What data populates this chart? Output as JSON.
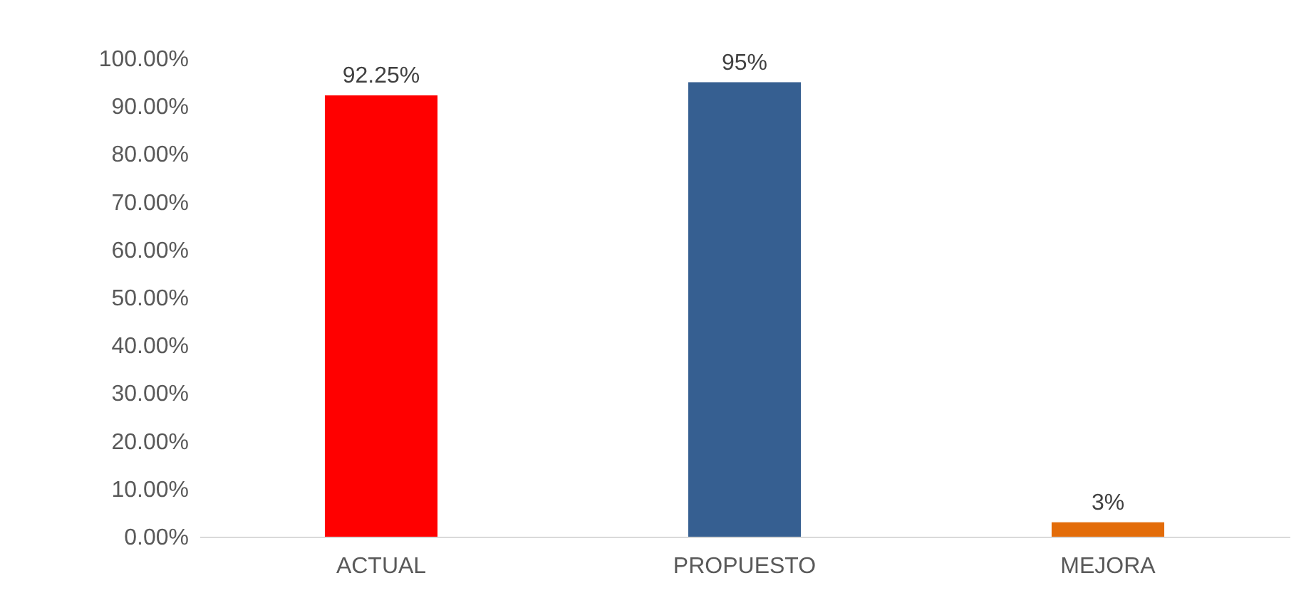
{
  "chart_data": {
    "type": "bar",
    "categories": [
      "ACTUAL",
      "PROPUESTO",
      "MEJORA"
    ],
    "values": [
      92.25,
      95,
      3
    ],
    "colors": [
      "#ff0000",
      "#365f91",
      "#e36c09"
    ],
    "value_labels": [
      "92.25%",
      "95%",
      "3%"
    ],
    "ylim": [
      0,
      100
    ],
    "yticks": [
      {
        "value": 0,
        "label": "0.00%"
      },
      {
        "value": 10,
        "label": "10.00%"
      },
      {
        "value": 20,
        "label": "20.00%"
      },
      {
        "value": 30,
        "label": "30.00%"
      },
      {
        "value": 40,
        "label": "40.00%"
      },
      {
        "value": 50,
        "label": "50.00%"
      },
      {
        "value": 60,
        "label": "60.00%"
      },
      {
        "value": 70,
        "label": "70.00%"
      },
      {
        "value": 80,
        "label": "80.00%"
      },
      {
        "value": 90,
        "label": "90.00%"
      },
      {
        "value": 100,
        "label": "100.00%"
      }
    ],
    "grid": false
  }
}
